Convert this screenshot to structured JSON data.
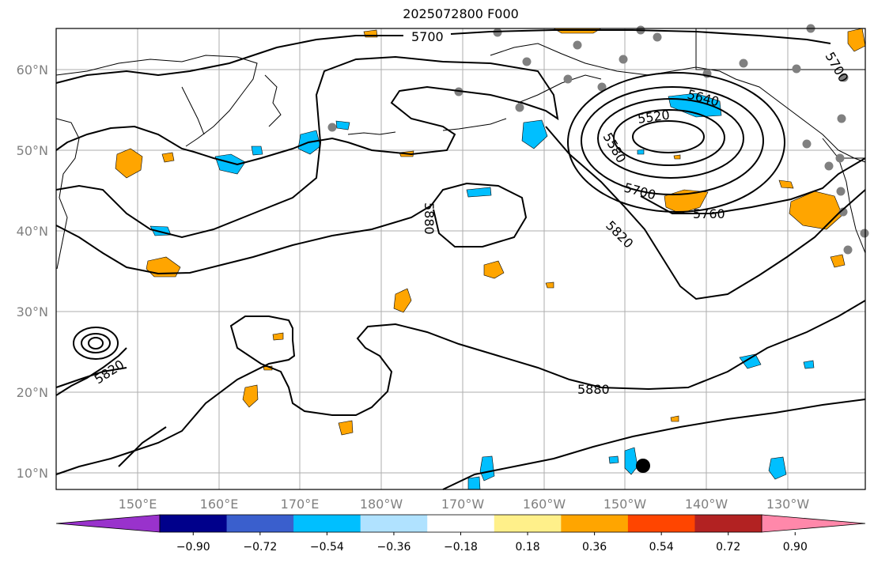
{
  "title": "2025072800 F000",
  "lat_labels": [
    "10°N",
    "20°N",
    "30°N",
    "40°N",
    "50°N",
    "60°N"
  ],
  "lon_labels": [
    "150°E",
    "160°E",
    "170°E",
    "180°W",
    "170°W",
    "160°W",
    "150°W",
    "140°W",
    "130°W"
  ],
  "contour_labels": [
    "5700",
    "5640",
    "5520",
    "5580",
    "5700",
    "5760",
    "5820",
    "5880",
    "5820",
    "5880",
    "5700"
  ],
  "colorbar": {
    "ticks": [
      "−0.90",
      "−0.72",
      "−0.54",
      "−0.36",
      "−0.18",
      "0.18",
      "0.36",
      "0.54",
      "0.72",
      "0.90"
    ],
    "colors": [
      "#9932cc",
      "#00008b",
      "#3a5fcd",
      "#00bfff",
      "#b0e2ff",
      "#ffffff",
      "#fff08a",
      "#ffa500",
      "#ff4500",
      "#b22222",
      "#ff88aa"
    ]
  },
  "colors": {
    "positive_fill": "#ffa500",
    "negative_fill": "#00bfff",
    "contour": "#000000",
    "grid": "#999999",
    "station": "#808080"
  }
}
